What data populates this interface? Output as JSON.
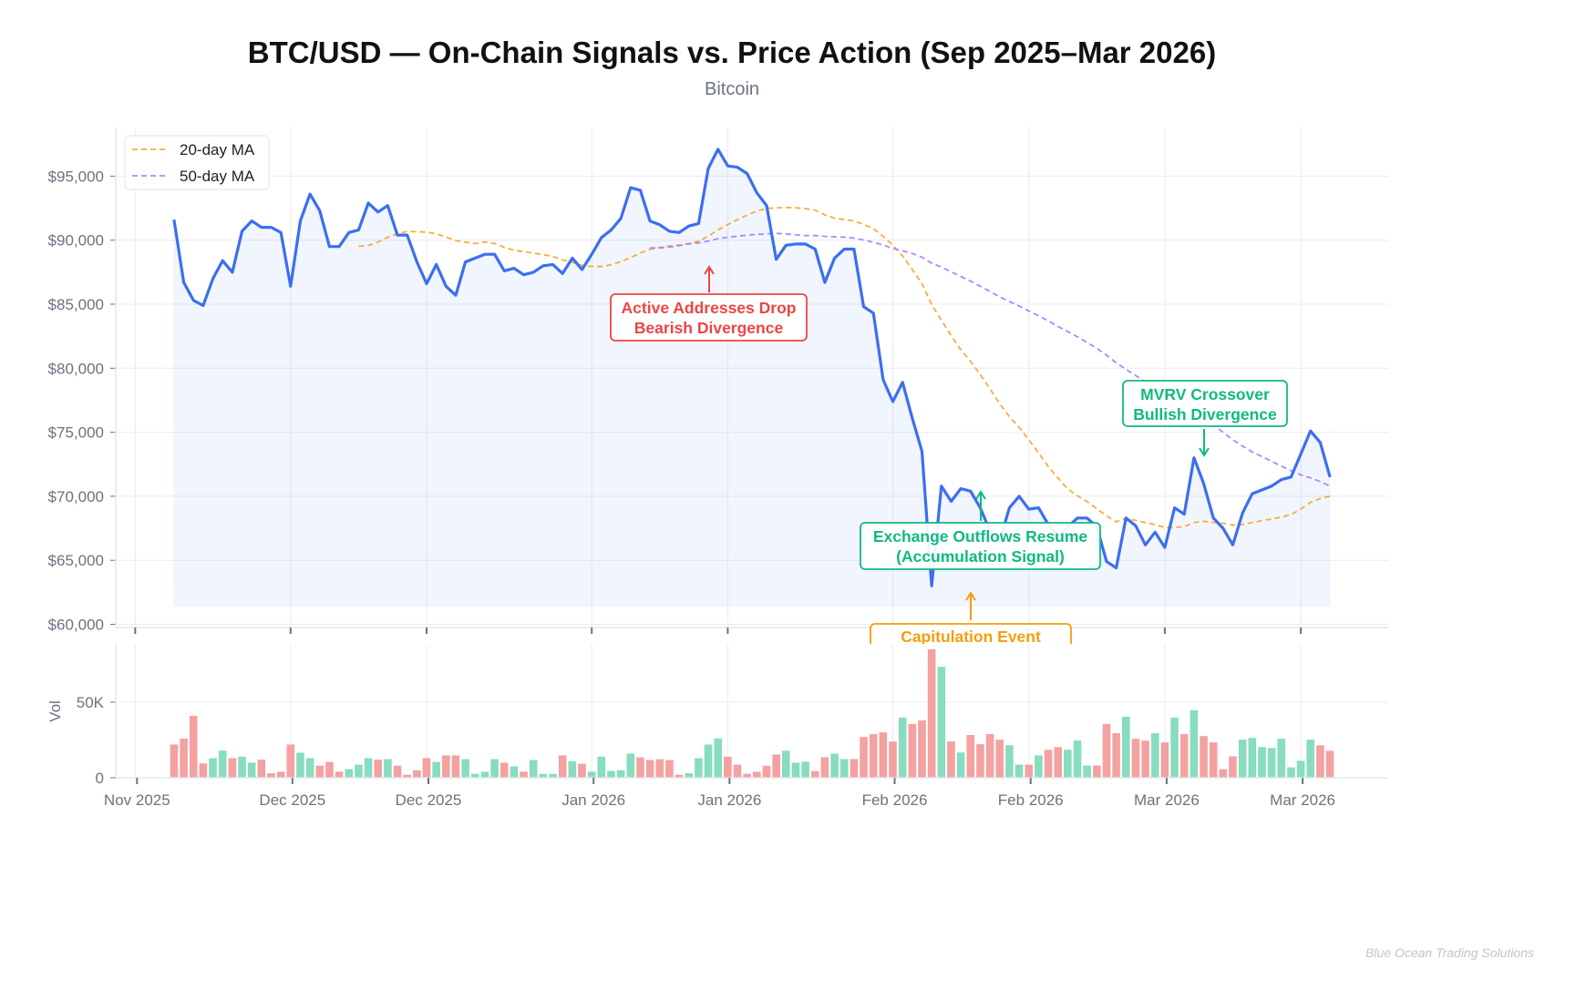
{
  "figure": {
    "title": "BTC/USD — On-Chain Signals vs. Price Action (Sep 2025–Mar 2026)",
    "subtitle": "Bitcoin",
    "watermark": "Blue Ocean Trading Solutions"
  },
  "chart_data": [
    {
      "type": "line",
      "panel": "price",
      "xlim": [
        -6,
        125
      ],
      "ylim": [
        60000,
        98500
      ],
      "grid": true,
      "legend_position": "top-left",
      "y_ticks": [
        60000,
        65000,
        70000,
        75000,
        80000,
        85000,
        90000,
        95000
      ],
      "y_tick_labels": [
        "$60,000",
        "$65,000",
        "$70,000",
        "$75,000",
        "$80,000",
        "$85,000",
        "$90,000",
        "$95,000"
      ],
      "x_ticks": [
        -4,
        12,
        26,
        43,
        57,
        74,
        88,
        102,
        116
      ],
      "colors": {
        "price": "#3b6ff0",
        "ma20": "#f6ad3b",
        "ma50": "#a78bfa"
      },
      "price": [
        91600,
        86700,
        85300,
        84900,
        87000,
        88400,
        87500,
        90700,
        91500,
        91000,
        91000,
        90600,
        86400,
        91500,
        93600,
        92300,
        89500,
        89500,
        90600,
        90800,
        92900,
        92200,
        92700,
        90400,
        90400,
        88300,
        86600,
        88100,
        86400,
        85700,
        88300,
        88600,
        88900,
        88900,
        87600,
        87800,
        87300,
        87500,
        88000,
        88100,
        87400,
        88600,
        87700,
        88900,
        90200,
        90800,
        91700,
        94100,
        93900,
        91500,
        91200,
        90700,
        90600,
        91100,
        91300,
        95600,
        97100,
        95800,
        95700,
        95200,
        93700,
        92700,
        88500,
        89600,
        89700,
        89700,
        89300,
        86700,
        88600,
        89300,
        89300,
        84800,
        84300,
        79100,
        77400,
        78900,
        76100,
        73500,
        63000,
        70800,
        69600,
        70600,
        70400,
        69100,
        67300,
        66500,
        69100,
        70000,
        69000,
        69100,
        67800,
        66800,
        67600,
        68300,
        68300,
        67600,
        64900,
        64400,
        68300,
        67700,
        66200,
        67200,
        66000,
        69100,
        68600,
        73000,
        71000,
        68300,
        67500,
        66200,
        68700,
        70200,
        70500,
        70800,
        71300,
        71500,
        73300,
        75100,
        74200,
        71500
      ],
      "moving_averages": [
        {
          "name": "20-day MA",
          "window": 20,
          "color": "#f6ad3b"
        },
        {
          "name": "50-day MA",
          "window": 50,
          "color": "#a78bfa"
        }
      ],
      "annotations": [
        {
          "lines": [
            "Active Addresses Drop",
            "Bearish Divergence"
          ],
          "color": "#ef4444",
          "arrow": "up"
        },
        {
          "lines": [
            "Exchange Outflows Resume",
            "(Accumulation Signal)"
          ],
          "color": "#10b981",
          "arrow": "up"
        },
        {
          "lines": [
            "Capitulation Event"
          ],
          "color": "#f59e0b",
          "arrow": "up"
        },
        {
          "lines": [
            "MVRV Crossover",
            "Bullish Divergence"
          ],
          "color": "#10b981",
          "arrow": "down"
        }
      ]
    },
    {
      "type": "bar",
      "panel": "volume",
      "ylabel": "Vol",
      "ylim": [
        0,
        88000
      ],
      "y_ticks": [
        0,
        50000
      ],
      "y_tick_labels": [
        "0",
        "50K"
      ],
      "x_ticks": [
        -4,
        12,
        26,
        43,
        57,
        74,
        88,
        102,
        116
      ],
      "x_tick_labels": [
        "Nov 2025",
        "Dec 2025",
        "Dec 2025",
        "Jan 2026",
        "Jan 2026",
        "Feb 2026",
        "Feb 2026",
        "Mar 2026",
        "Mar 2026"
      ],
      "colors": {
        "up": "#88dcbf",
        "down": "#f4a1a1"
      },
      "volume": [
        22000,
        26000,
        41000,
        9500,
        13000,
        18000,
        13000,
        14000,
        10000,
        12000,
        3000,
        4000,
        22000,
        16600,
        13000,
        8000,
        10500,
        4000,
        5700,
        8700,
        13000,
        12000,
        12300,
        8000,
        2000,
        5000,
        13000,
        10500,
        14800,
        14800,
        12300,
        2600,
        4000,
        12300,
        10000,
        7500,
        4000,
        11700,
        2600,
        2600,
        14800,
        11000,
        9300,
        4000,
        14000,
        4500,
        5000,
        16000,
        13500,
        11700,
        12300,
        11700,
        2000,
        3000,
        13000,
        22000,
        26000,
        14000,
        8700,
        2600,
        4000,
        8000,
        15400,
        17900,
        10000,
        10600,
        4500,
        13600,
        16000,
        12400,
        12400,
        27000,
        28900,
        30000,
        24000,
        39800,
        35600,
        38000,
        85000,
        73400,
        24000,
        16700,
        28300,
        22200,
        28900,
        25200,
        21500,
        8700,
        8700,
        14800,
        18500,
        20300,
        18500,
        24600,
        8100,
        8100,
        35600,
        29500,
        40400,
        25800,
        24600,
        29500,
        23400,
        39800,
        28900,
        44700,
        27600,
        23400,
        5700,
        14200,
        25200,
        26400,
        20300,
        19700,
        25800,
        6900,
        11200,
        25200,
        21500,
        17900
      ],
      "direction": [
        "down",
        "down",
        "down",
        "down",
        "up",
        "up",
        "down",
        "up",
        "up",
        "down",
        "down",
        "down",
        "down",
        "up",
        "up",
        "down",
        "down",
        "down",
        "up",
        "up",
        "up",
        "down",
        "up",
        "down",
        "down",
        "down",
        "down",
        "up",
        "down",
        "down",
        "up",
        "up",
        "up",
        "up",
        "down",
        "up",
        "down",
        "up",
        "up",
        "up",
        "down",
        "up",
        "down",
        "up",
        "up",
        "up",
        "up",
        "up",
        "down",
        "down",
        "down",
        "down",
        "down",
        "up",
        "up",
        "up",
        "up",
        "down",
        "down",
        "down",
        "down",
        "down",
        "down",
        "up",
        "up",
        "up",
        "down",
        "down",
        "up",
        "up",
        "down",
        "down",
        "down",
        "down",
        "down",
        "up",
        "down",
        "down",
        "down",
        "up",
        "down",
        "up",
        "down",
        "down",
        "down",
        "down",
        "up",
        "up",
        "down",
        "up",
        "down",
        "down",
        "up",
        "up",
        "up",
        "down",
        "down",
        "down",
        "up",
        "down",
        "down",
        "up",
        "down",
        "up",
        "down",
        "up",
        "down",
        "down",
        "down",
        "down",
        "up",
        "up",
        "up",
        "up",
        "up",
        "up",
        "up",
        "up",
        "down",
        "down"
      ]
    }
  ]
}
